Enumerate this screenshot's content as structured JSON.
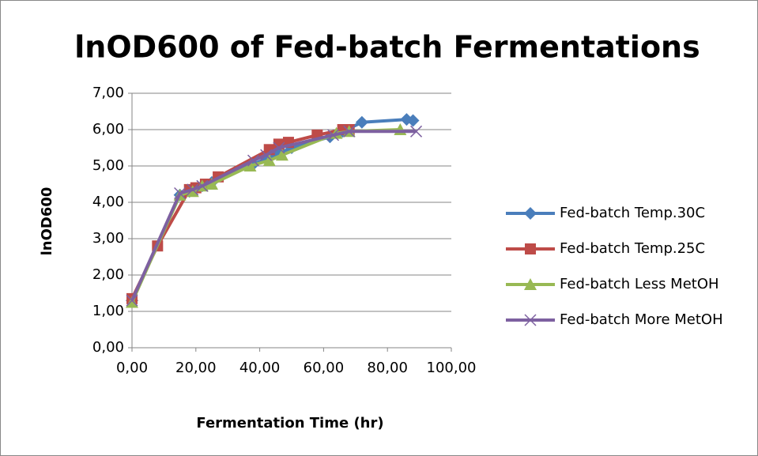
{
  "chart_data": {
    "type": "line",
    "title": "lnOD600 of Fed-batch Fermentations",
    "x_label": "Fermentation Time (hr)",
    "y_label": "lnOD600",
    "xlim": [
      0,
      100
    ],
    "xticks": [
      {
        "value": 0,
        "label": "0,00"
      },
      {
        "value": 20,
        "label": "20,00"
      },
      {
        "value": 40,
        "label": "40,00"
      },
      {
        "value": 60,
        "label": "60,00"
      },
      {
        "value": 80,
        "label": "80,00"
      },
      {
        "value": 100,
        "label": "100,00"
      }
    ],
    "ylim": [
      0,
      7
    ],
    "yticks": [
      {
        "value": 0,
        "label": "0,00"
      },
      {
        "value": 1,
        "label": "1,00"
      },
      {
        "value": 2,
        "label": "2,00"
      },
      {
        "value": 3,
        "label": "3,00"
      },
      {
        "value": 4,
        "label": "4,00"
      },
      {
        "value": 5,
        "label": "5,00"
      },
      {
        "value": 6,
        "label": "6,00"
      },
      {
        "value": 7,
        "label": "7,00"
      }
    ],
    "grid": true,
    "legend": "right",
    "series": [
      {
        "name": "Fed-batch Temp.30C",
        "color": "#4a7ebb",
        "marker": "diamond",
        "x": [
          0,
          15,
          18,
          22,
          25,
          38,
          42,
          46,
          50,
          62,
          66,
          72,
          86,
          88
        ],
        "values": [
          1.3,
          4.2,
          4.3,
          4.45,
          4.55,
          5.05,
          5.2,
          5.35,
          5.5,
          5.8,
          5.95,
          6.2,
          6.28,
          6.25
        ]
      },
      {
        "name": "Fed-batch Temp.25C",
        "color": "#be4b48",
        "marker": "square",
        "x": [
          0,
          8,
          18,
          20,
          23,
          27,
          43,
          46,
          49,
          58,
          66,
          68
        ],
        "values": [
          1.35,
          2.8,
          4.35,
          4.4,
          4.5,
          4.7,
          5.45,
          5.6,
          5.65,
          5.85,
          6.0,
          6.0
        ]
      },
      {
        "name": "Fed-batch Less MetOH",
        "color": "#98b954",
        "marker": "triangle",
        "x": [
          0,
          15,
          19,
          22,
          25,
          37,
          43,
          47,
          64,
          68,
          84
        ],
        "values": [
          1.25,
          4.2,
          4.3,
          4.45,
          4.5,
          5.0,
          5.15,
          5.3,
          5.9,
          5.95,
          6.0
        ]
      },
      {
        "name": "Fed-batch More MetOH",
        "color": "#7d60a0",
        "marker": "x",
        "x": [
          0,
          15,
          19,
          22,
          38,
          42,
          46,
          63,
          68,
          89
        ],
        "values": [
          1.3,
          4.25,
          4.35,
          4.45,
          5.15,
          5.3,
          5.5,
          5.85,
          5.95,
          5.95
        ]
      }
    ]
  }
}
